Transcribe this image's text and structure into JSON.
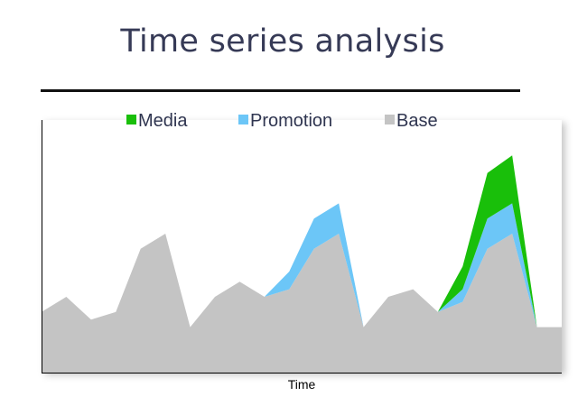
{
  "page": {
    "title": "Time series analysis"
  },
  "chart_data": {
    "type": "area",
    "stacked": true,
    "title": "Time series analysis",
    "xlabel": "Time",
    "ylabel": "",
    "legend_position": "top",
    "grid": false,
    "ylim": [
      0,
      100
    ],
    "x": [
      1,
      2,
      3,
      4,
      5,
      6,
      7,
      8,
      9,
      10,
      11,
      12,
      13,
      14,
      15,
      16,
      17,
      18,
      19,
      20,
      21,
      22
    ],
    "series": [
      {
        "name": "Base",
        "color": "#c4c4c4",
        "values": [
          24,
          30,
          21,
          24,
          49,
          55,
          18,
          30,
          36,
          30,
          33,
          49,
          55,
          18,
          30,
          33,
          24,
          28,
          49,
          55,
          18,
          18
        ]
      },
      {
        "name": "Promotion",
        "color": "#6cc6f7",
        "values": [
          0,
          0,
          0,
          0,
          0,
          0,
          0,
          0,
          0,
          0,
          7,
          12,
          12,
          0,
          0,
          0,
          0,
          5,
          12,
          12,
          0,
          0
        ]
      },
      {
        "name": "Media",
        "color": "#19bf0a",
        "values": [
          0,
          0,
          0,
          0,
          0,
          0,
          0,
          0,
          0,
          0,
          0,
          0,
          0,
          0,
          0,
          0,
          0,
          9,
          18,
          19,
          0,
          0
        ]
      }
    ]
  }
}
